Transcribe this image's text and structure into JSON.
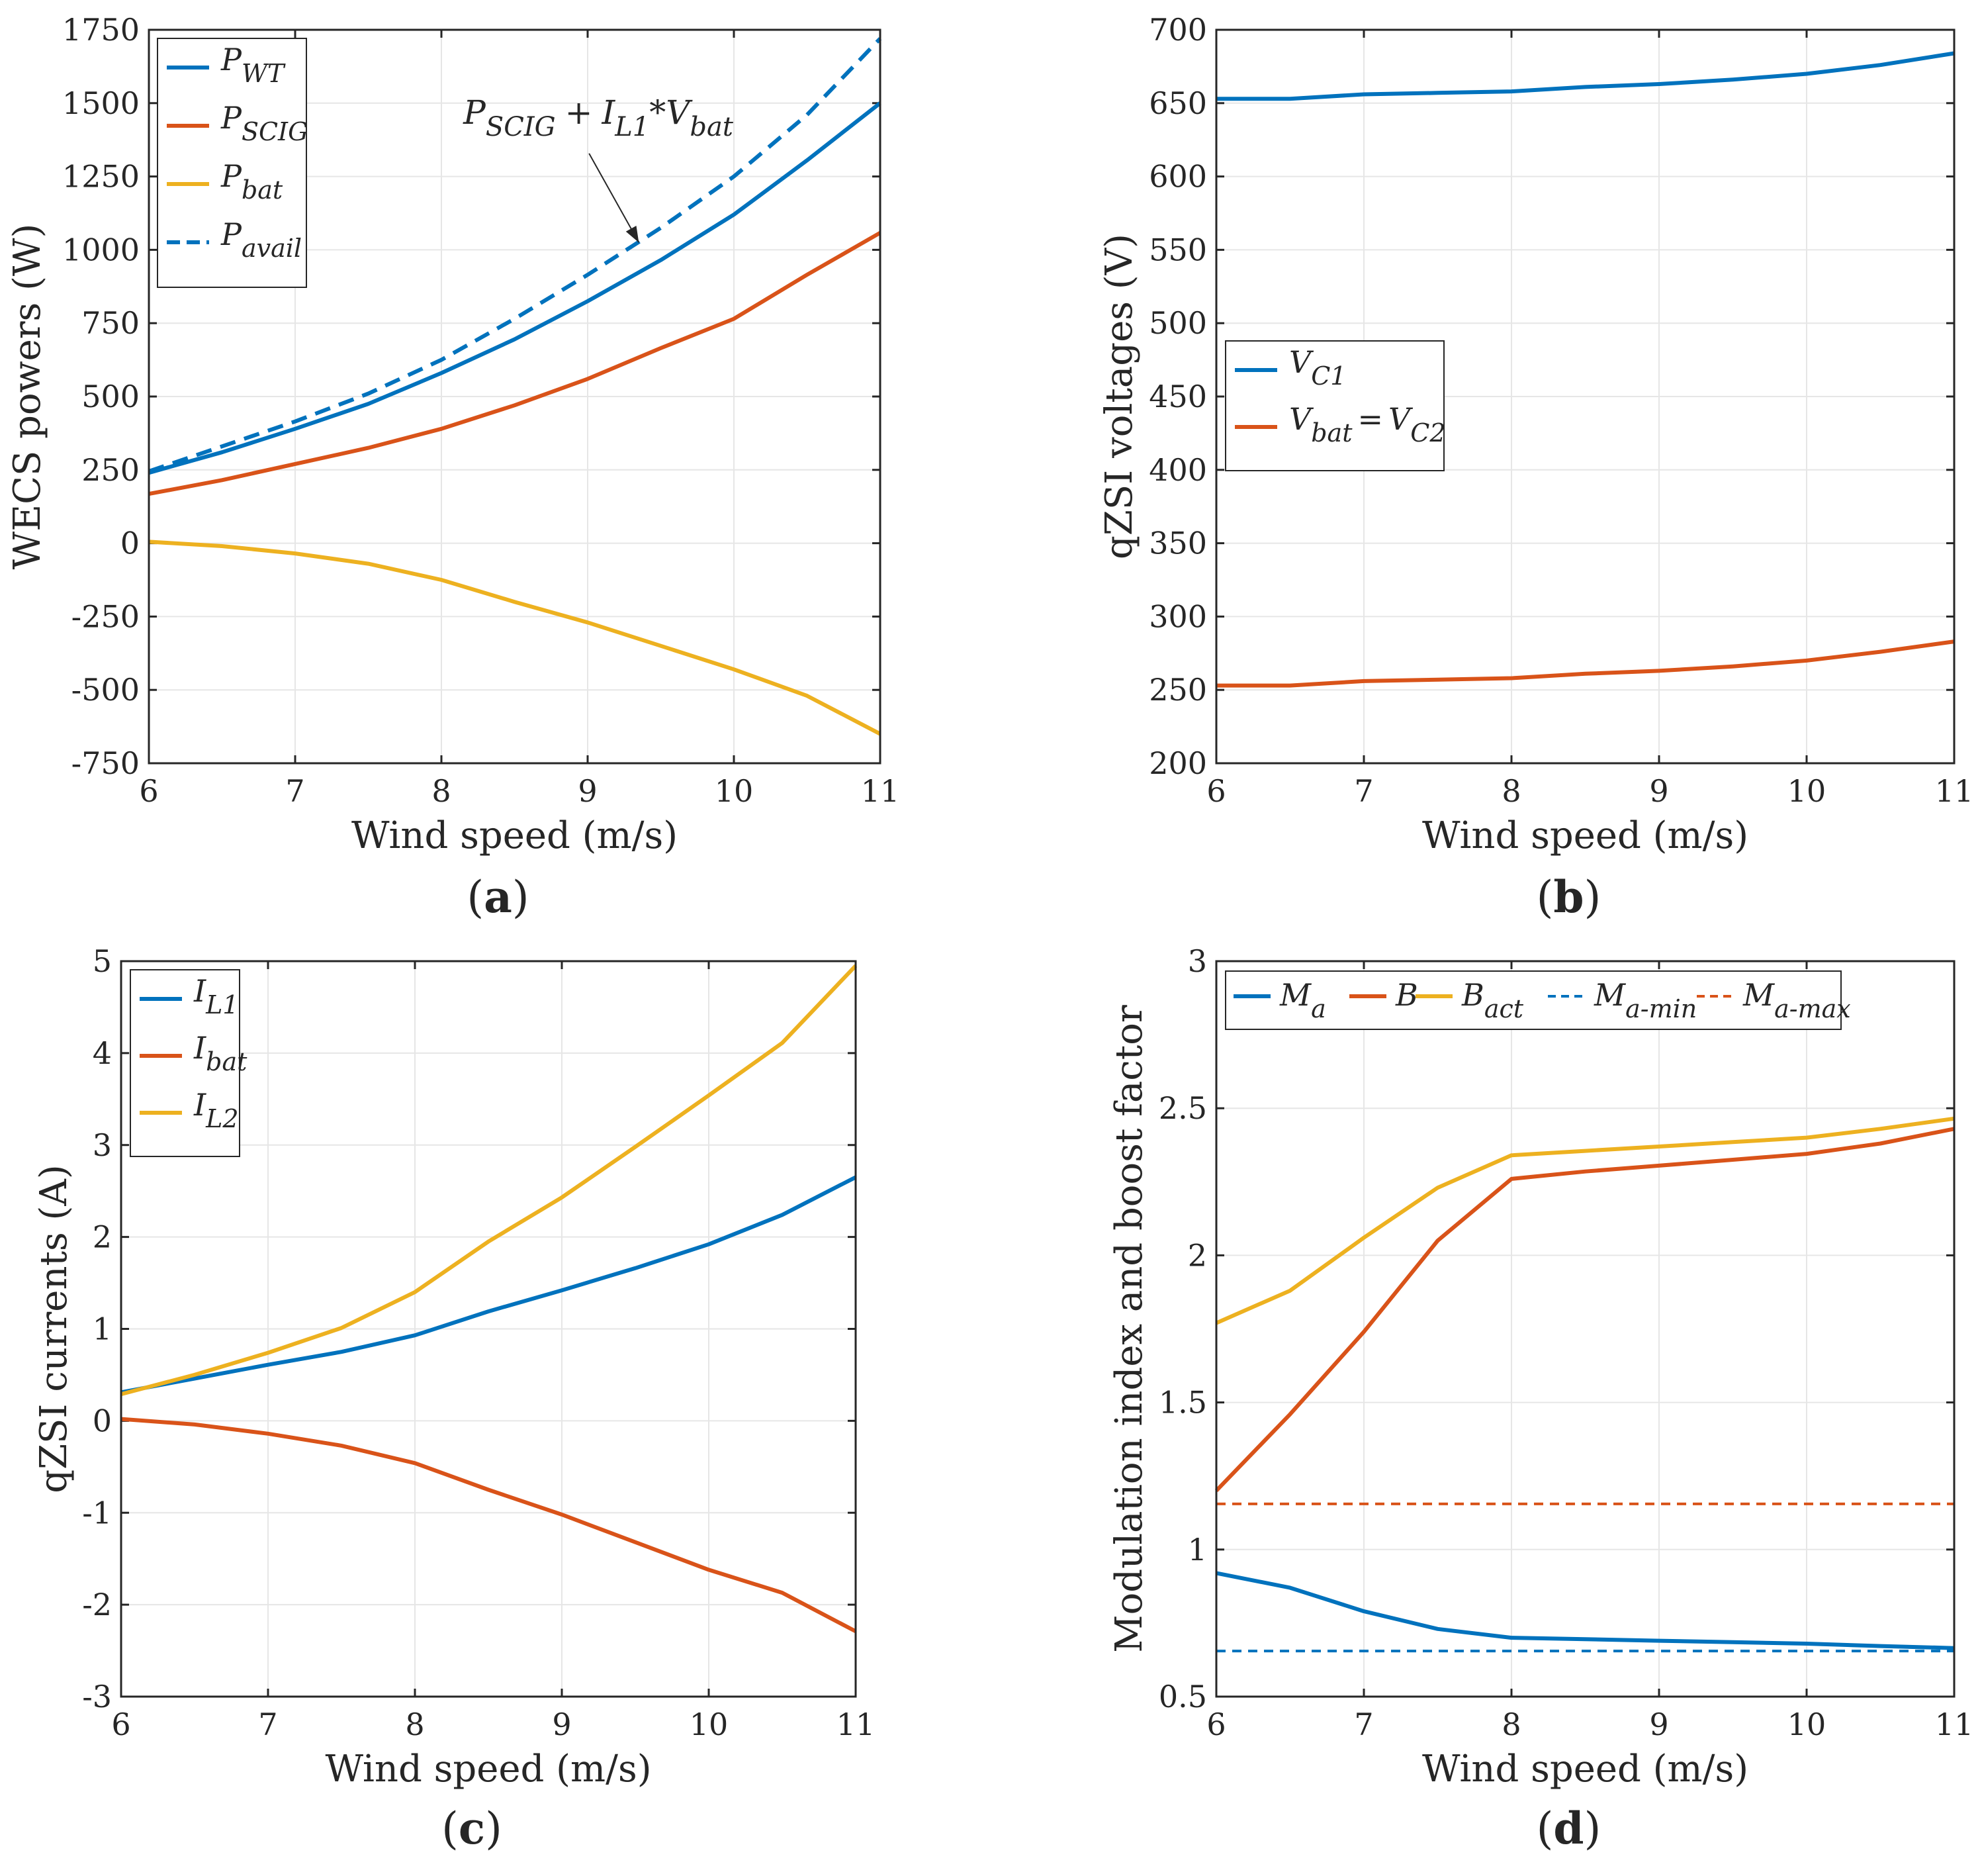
{
  "colors": {
    "blue": "#0072BD",
    "orange": "#D95319",
    "yellow": "#EDB120",
    "axis": "#262626",
    "grid": "#e6e6e6"
  },
  "chart_data": [
    {
      "id": "a",
      "panel_label": "a",
      "type": "line",
      "xlabel": "Wind speed (m/s)",
      "ylabel": "WECS powers (W)",
      "xlim": [
        6,
        11
      ],
      "ylim": [
        -750,
        1750
      ],
      "xticks": [
        6,
        7,
        8,
        9,
        10,
        11
      ],
      "yticks": [
        -750,
        -500,
        -250,
        0,
        250,
        500,
        750,
        1000,
        1250,
        1500,
        1750
      ],
      "grid": true,
      "legend_position": "top-left",
      "legend_layout": "vertical",
      "annotation": {
        "text": "P_SCIG + I_L1*V_bat",
        "base1": "P",
        "sub1": "SCIG",
        "plus": "+",
        "base2": "I",
        "sub2": "L1",
        "star": "*",
        "base3": "V",
        "sub3": "bat",
        "points_to": {
          "x": 9.35,
          "y": 1025
        },
        "text_at": {
          "x": 8.15,
          "y": 1430
        }
      },
      "series": [
        {
          "name": "P_WT",
          "base": "P",
          "sub": "WT",
          "color": "blue",
          "dash": false,
          "x": [
            6,
            6.5,
            7,
            7.5,
            8,
            8.5,
            9,
            9.5,
            10,
            10.5,
            11
          ],
          "y": [
            240,
            310,
            390,
            475,
            580,
            695,
            825,
            965,
            1120,
            1305,
            1500
          ]
        },
        {
          "name": "P_SCIG",
          "base": "P",
          "sub": "SCIG",
          "color": "orange",
          "dash": false,
          "x": [
            6,
            6.5,
            7,
            7.5,
            8,
            8.5,
            9,
            9.5,
            10,
            10.5,
            11
          ],
          "y": [
            168,
            215,
            270,
            325,
            390,
            470,
            560,
            665,
            765,
            915,
            1058
          ]
        },
        {
          "name": "P_bat",
          "base": "P",
          "sub": "bat",
          "color": "yellow",
          "dash": false,
          "x": [
            6,
            6.5,
            7,
            7.5,
            8,
            8.5,
            9,
            9.5,
            10,
            10.5,
            11
          ],
          "y": [
            5,
            -10,
            -35,
            -70,
            -125,
            -200,
            -270,
            -350,
            -430,
            -520,
            -650
          ]
        },
        {
          "name": "P_avail",
          "base": "P",
          "sub": "avail",
          "color": "blue",
          "dash": true,
          "x": [
            6,
            6.5,
            7,
            7.5,
            8,
            8.5,
            9,
            9.5,
            10,
            10.5,
            11
          ],
          "y": [
            245,
            330,
            415,
            510,
            625,
            765,
            915,
            1075,
            1250,
            1460,
            1720
          ]
        }
      ]
    },
    {
      "id": "b",
      "panel_label": "b",
      "type": "line",
      "xlabel": "Wind speed (m/s)",
      "ylabel": "qZSI voltages (V)",
      "xlim": [
        6,
        11
      ],
      "ylim": [
        200,
        700
      ],
      "xticks": [
        6,
        7,
        8,
        9,
        10,
        11
      ],
      "yticks": [
        200,
        250,
        300,
        350,
        400,
        450,
        500,
        550,
        600,
        650,
        700
      ],
      "grid": true,
      "legend_position": "middle-left",
      "legend_layout": "vertical",
      "series": [
        {
          "name": "V_C1",
          "base": "V",
          "sub": "C1",
          "color": "blue",
          "dash": false,
          "x": [
            6,
            6.5,
            7,
            7.5,
            8,
            8.5,
            9,
            9.5,
            10,
            10.5,
            11
          ],
          "y": [
            653,
            653,
            656,
            657,
            658,
            661,
            663,
            666,
            670,
            676,
            684
          ]
        },
        {
          "name": "V_bat = V_C2",
          "base": "V",
          "sub": "bat",
          "eq": "=",
          "base2": "V",
          "sub2": "C2",
          "color": "orange",
          "dash": false,
          "x": [
            6,
            6.5,
            7,
            7.5,
            8,
            8.5,
            9,
            9.5,
            10,
            10.5,
            11
          ],
          "y": [
            253,
            253,
            256,
            257,
            258,
            261,
            263,
            266,
            270,
            276,
            283
          ]
        }
      ]
    },
    {
      "id": "c",
      "panel_label": "c",
      "type": "line",
      "xlabel": "Wind speed (m/s)",
      "ylabel": "qZSI currents (A)",
      "xlim": [
        6,
        11
      ],
      "ylim": [
        -3,
        5
      ],
      "xticks": [
        6,
        7,
        8,
        9,
        10,
        11
      ],
      "yticks": [
        -3,
        -2,
        -1,
        0,
        1,
        2,
        3,
        4,
        5
      ],
      "grid": true,
      "legend_position": "top-left",
      "legend_layout": "vertical",
      "series": [
        {
          "name": "I_L1",
          "base": "I",
          "sub": "L1",
          "color": "blue",
          "dash": false,
          "x": [
            6,
            6.5,
            7,
            7.5,
            8,
            8.5,
            9,
            9.5,
            10,
            10.5,
            11
          ],
          "y": [
            0.31,
            0.46,
            0.61,
            0.75,
            0.93,
            1.19,
            1.42,
            1.66,
            1.92,
            2.24,
            2.65
          ]
        },
        {
          "name": "I_bat",
          "base": "I",
          "sub": "bat",
          "color": "orange",
          "dash": false,
          "x": [
            6,
            6.5,
            7,
            7.5,
            8,
            8.5,
            9,
            9.5,
            10,
            10.5,
            11
          ],
          "y": [
            0.02,
            -0.04,
            -0.14,
            -0.27,
            -0.46,
            -0.75,
            -1.02,
            -1.32,
            -1.62,
            -1.87,
            -2.29
          ]
        },
        {
          "name": "I_L2",
          "base": "I",
          "sub": "L2",
          "color": "yellow",
          "dash": false,
          "x": [
            6,
            6.5,
            7,
            7.5,
            8,
            8.5,
            9,
            9.5,
            10,
            10.5,
            11
          ],
          "y": [
            0.29,
            0.5,
            0.74,
            1.01,
            1.4,
            1.95,
            2.43,
            2.98,
            3.54,
            4.11,
            4.95
          ]
        }
      ]
    },
    {
      "id": "d",
      "panel_label": "d",
      "type": "line",
      "xlabel": "Wind speed (m/s)",
      "ylabel": "Modulation index and boost factor",
      "xlim": [
        6,
        11
      ],
      "ylim": [
        0.5,
        3
      ],
      "xticks": [
        6,
        7,
        8,
        9,
        10,
        11
      ],
      "yticks": [
        0.5,
        1,
        1.5,
        2,
        2.5,
        3
      ],
      "grid": true,
      "legend_position": "top-left",
      "legend_layout": "horizontal",
      "series": [
        {
          "name": "M_a",
          "base": "M",
          "sub": "a",
          "color": "blue",
          "dash": false,
          "x": [
            6,
            6.5,
            7,
            7.5,
            8,
            8.5,
            9,
            9.5,
            10,
            10.5,
            11
          ],
          "y": [
            0.92,
            0.87,
            0.79,
            0.73,
            0.7,
            0.695,
            0.69,
            0.685,
            0.68,
            0.672,
            0.665
          ]
        },
        {
          "name": "B",
          "base": "B",
          "sub": "",
          "color": "orange",
          "dash": false,
          "x": [
            6,
            6.5,
            7,
            7.5,
            8,
            8.5,
            9,
            9.5,
            10,
            10.5,
            11
          ],
          "y": [
            1.2,
            1.46,
            1.74,
            2.05,
            2.26,
            2.285,
            2.305,
            2.325,
            2.345,
            2.38,
            2.43
          ]
        },
        {
          "name": "B_act",
          "base": "B",
          "sub": "act",
          "color": "yellow",
          "dash": false,
          "x": [
            6,
            6.5,
            7,
            7.5,
            8,
            8.5,
            9,
            9.5,
            10,
            10.5,
            11
          ],
          "y": [
            1.77,
            1.88,
            2.06,
            2.23,
            2.34,
            2.355,
            2.37,
            2.385,
            2.4,
            2.43,
            2.465
          ]
        },
        {
          "name": "M_a-min",
          "base": "M",
          "sub": "a-min",
          "color": "blue",
          "dash": true,
          "x": [
            6,
            11
          ],
          "y": [
            0.655,
            0.655
          ]
        },
        {
          "name": "M_a-max",
          "base": "M",
          "sub": "a-max",
          "color": "orange",
          "dash": true,
          "x": [
            6,
            11
          ],
          "y": [
            1.155,
            1.155
          ]
        }
      ]
    }
  ]
}
